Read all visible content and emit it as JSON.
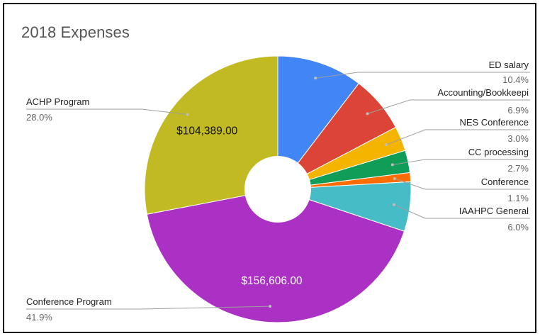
{
  "chart_data": {
    "type": "pie",
    "donut": true,
    "title": "2018 Expenses",
    "slices": [
      {
        "name": "ED salary",
        "percent_label": "10.4%",
        "value": 10.4,
        "color": "#4285F4",
        "label_side": "right"
      },
      {
        "name": "Accounting/Bookkeepi",
        "percent_label": "6.9%",
        "value": 6.9,
        "color": "#DB4437",
        "label_side": "right"
      },
      {
        "name": "NES Conference",
        "percent_label": "3.0%",
        "value": 3.0,
        "color": "#F4B400",
        "label_side": "right"
      },
      {
        "name": "CC processing",
        "percent_label": "2.7%",
        "value": 2.7,
        "color": "#0F9D58",
        "label_side": "right"
      },
      {
        "name": "Conference",
        "percent_label": "1.1%",
        "value": 1.1,
        "color": "#FF6D00",
        "label_side": "right"
      },
      {
        "name": "IAAHPC General",
        "percent_label": "6.0%",
        "value": 6.0,
        "color": "#46BDC6",
        "label_side": "right"
      },
      {
        "name": "Conference Program",
        "percent_label": "41.9%",
        "value": 41.9,
        "color": "#AB30C4",
        "label_side": "left",
        "slice_text": "$156,606.00",
        "slice_text_color": "#ffffff"
      },
      {
        "name": "ACHP Program",
        "percent_label": "28.0%",
        "value": 28.0,
        "color": "#C2BA22",
        "label_side": "left",
        "slice_text": "$104,389.00",
        "slice_text_color": "#111111"
      }
    ],
    "start_angle_deg": 0,
    "legend": "callout labels"
  }
}
